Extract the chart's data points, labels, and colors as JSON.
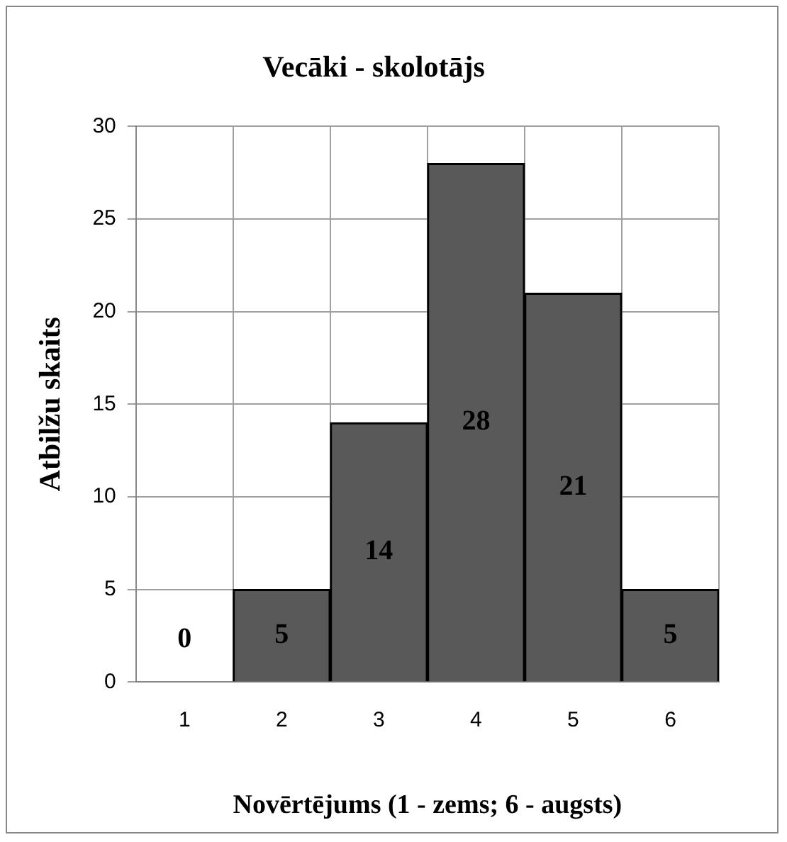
{
  "chart_data": {
    "type": "bar",
    "title": "Vecāki - skolotājs",
    "xlabel": "Novērtējums (1 - zems; 6 - augsts)",
    "ylabel": "Atbilžu skaits",
    "categories": [
      "1",
      "2",
      "3",
      "4",
      "5",
      "6"
    ],
    "values": [
      0,
      5,
      14,
      28,
      21,
      5
    ],
    "color": "#595959",
    "ylim": [
      0,
      30
    ],
    "yticks": [
      0,
      5,
      10,
      15,
      20,
      25,
      30
    ],
    "grid": true,
    "data_labels": true
  }
}
